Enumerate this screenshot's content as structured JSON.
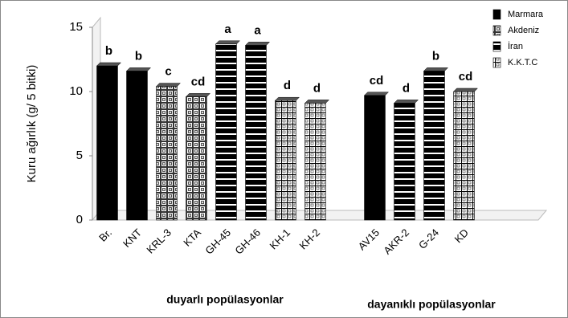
{
  "chart_data": {
    "type": "bar",
    "y_label": "Kuru ağırlık (g/ 5 bitki)",
    "categories": [
      "Br.",
      "KNT",
      "KRL-3",
      "KTA",
      "GH-45",
      "GH-46",
      "KH-1",
      "KH-2",
      null,
      "AV15",
      "AKR-2",
      "G-24",
      "KD",
      null,
      null
    ],
    "series": [
      {
        "name": "Marmara",
        "color": "#000000",
        "values": [
          12.0,
          11.6,
          null,
          null,
          null,
          null,
          null,
          null,
          null,
          9.7,
          null,
          null,
          null,
          null,
          null
        ]
      },
      {
        "name": "Akdeniz",
        "color": "#000000",
        "values": [
          null,
          null,
          10.4,
          9.6,
          null,
          null,
          null,
          null,
          null,
          null,
          null,
          null,
          null,
          null,
          null
        ]
      },
      {
        "name": "İran",
        "color": "#000000",
        "values": [
          null,
          null,
          null,
          null,
          13.7,
          13.6,
          null,
          null,
          null,
          null,
          9.1,
          11.6,
          null,
          null,
          null
        ]
      },
      {
        "name": "K.K.T.C",
        "color": "#000000",
        "values": [
          null,
          null,
          null,
          null,
          null,
          null,
          9.3,
          9.1,
          null,
          null,
          null,
          null,
          10.0,
          null,
          null
        ]
      }
    ],
    "significance": [
      "b",
      "b",
      "c",
      "cd",
      "a",
      "a",
      "d",
      "d",
      null,
      "cd",
      "d",
      "b",
      "cd",
      null,
      null
    ],
    "group_labels": [
      "duyarlı popülasyonlar",
      "dayanıklı popülasyonlar"
    ],
    "ylim": [
      0,
      15
    ],
    "yticks": [
      0,
      5,
      10,
      15
    ]
  }
}
